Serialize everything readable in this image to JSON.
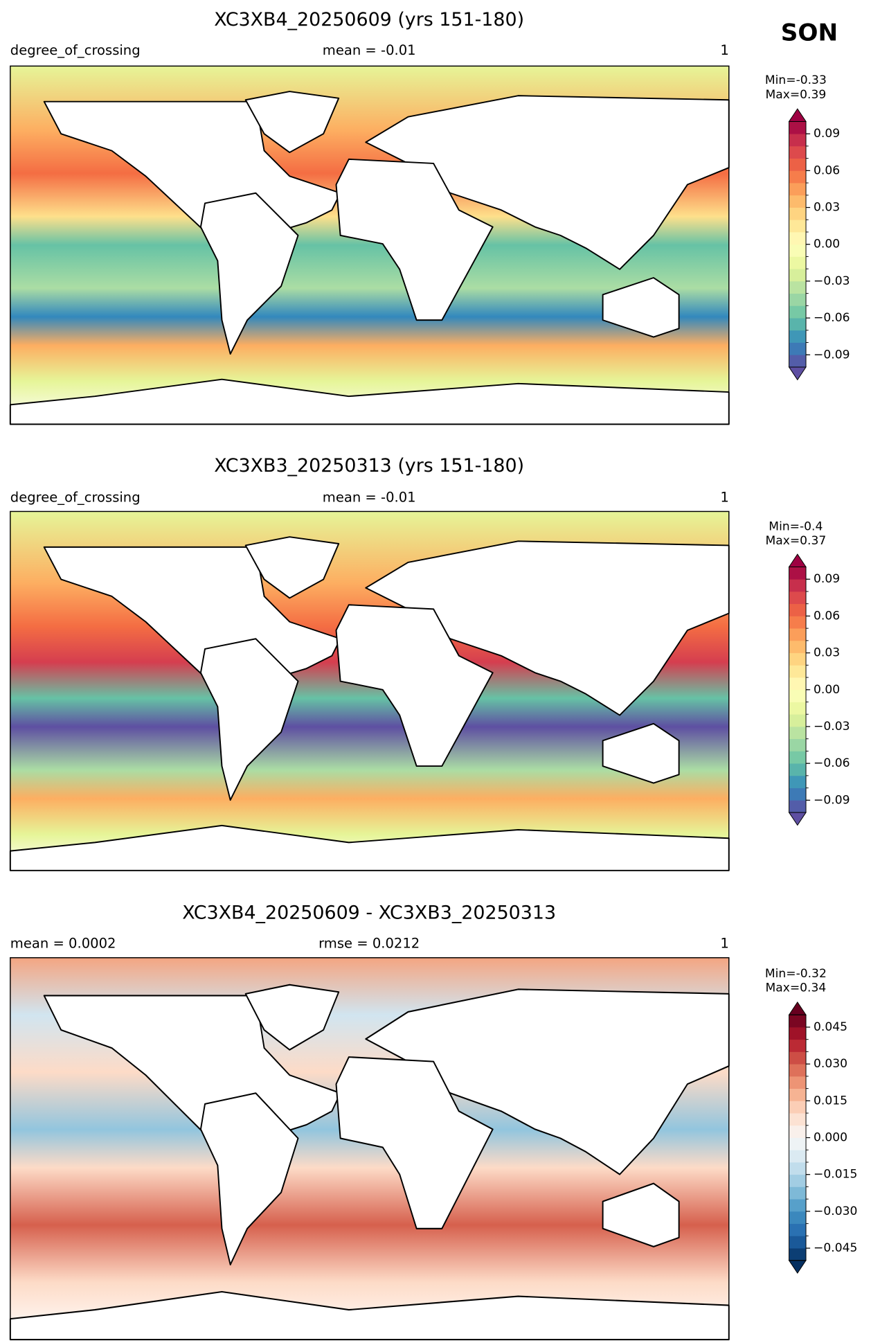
{
  "header": {
    "season": "SON"
  },
  "panels": [
    {
      "title": "XC3XB4_20250609 (yrs 151-180)",
      "left_label": "degree_of_crossing",
      "center_label": "mean = -0.01",
      "right_label": "1",
      "min_label": "Min=-0.33",
      "max_label": "Max=0.39",
      "colorbar": {
        "lim": [
          -0.1,
          0.1
        ],
        "levels": 20,
        "cmap": [
          "#5e4fa2",
          "#3288bd",
          "#66c2a5",
          "#abdda4",
          "#e6f598",
          "#ffffbf",
          "#fee08b",
          "#fdae61",
          "#f46d43",
          "#d53e4f",
          "#9e0142"
        ],
        "ticks": [
          0.09,
          0.06,
          0.03,
          {
            "value": 0,
            "label": "0.00"
          },
          {
            "value": -0.03,
            "label": "−0.03"
          },
          {
            "value": -0.06,
            "label": "−0.06"
          },
          {
            "value": -0.09,
            "label": "−0.09"
          }
        ]
      }
    },
    {
      "title": "XC3XB3_20250313 (yrs 151-180)",
      "left_label": "degree_of_crossing",
      "center_label": "mean = -0.01",
      "right_label": "1",
      "min_label": "Min=-0.4",
      "max_label": "Max=0.37",
      "colorbar": {
        "lim": [
          -0.1,
          0.1
        ],
        "levels": 20,
        "cmap": [
          "#5e4fa2",
          "#3288bd",
          "#66c2a5",
          "#abdda4",
          "#e6f598",
          "#ffffbf",
          "#fee08b",
          "#fdae61",
          "#f46d43",
          "#d53e4f",
          "#9e0142"
        ],
        "ticks": [
          0.09,
          0.06,
          0.03,
          {
            "value": 0,
            "label": "0.00"
          },
          {
            "value": -0.03,
            "label": "−0.03"
          },
          {
            "value": -0.06,
            "label": "−0.06"
          },
          {
            "value": -0.09,
            "label": "−0.09"
          }
        ]
      }
    },
    {
      "title": "XC3XB4_20250609 - XC3XB3_20250313",
      "left_label": "mean = 0.0002",
      "center_label": "rmse = 0.0212",
      "right_label": "1",
      "min_label": "Min=-0.32",
      "max_label": "Max=0.34",
      "colorbar": {
        "lim": [
          -0.05,
          0.05
        ],
        "levels": 20,
        "cmap": [
          "#053061",
          "#2166ac",
          "#4393c3",
          "#92c5de",
          "#d1e5f0",
          "#f7f7f7",
          "#fddbc7",
          "#f4a582",
          "#d6604d",
          "#b2182b",
          "#67001f"
        ],
        "ticks": [
          0.045,
          {
            "value": 0.03,
            "label": "0.030"
          },
          0.015,
          {
            "value": 0,
            "label": "0.000"
          },
          {
            "value": -0.015,
            "label": "−0.015"
          },
          {
            "value": -0.03,
            "label": "−0.030"
          },
          {
            "value": -0.045,
            "label": "−0.045"
          }
        ]
      }
    }
  ]
}
